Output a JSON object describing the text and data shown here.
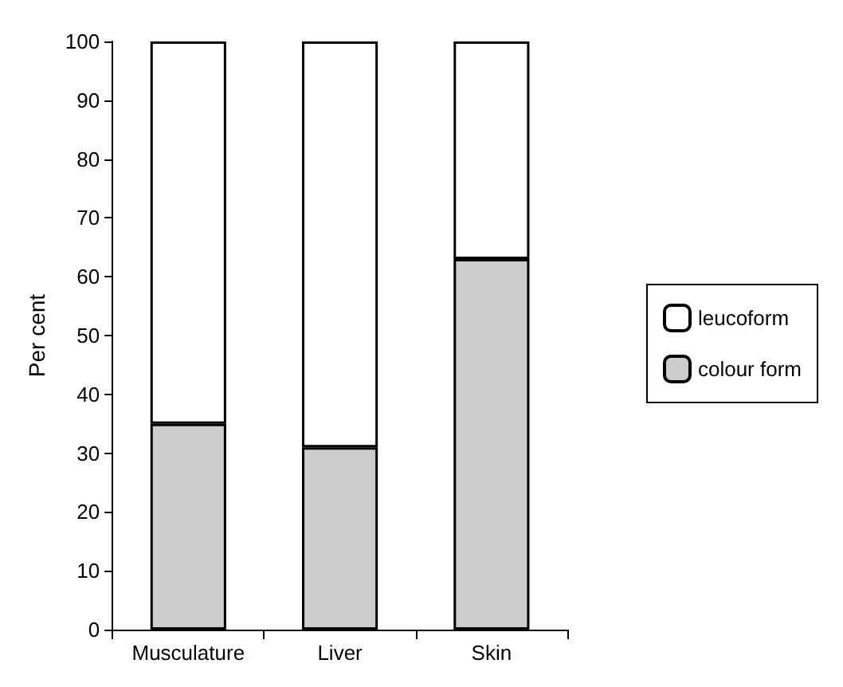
{
  "chart_data": {
    "type": "bar",
    "stacked": true,
    "ylabel": "Per cent",
    "categories": [
      "Musculature",
      "Liver",
      "Skin"
    ],
    "series": [
      {
        "name": "colour form",
        "color": "#cccccc",
        "values": [
          35,
          31,
          63
        ]
      },
      {
        "name": "leucoform",
        "color": "#ffffff",
        "values": [
          65,
          69,
          37
        ]
      }
    ],
    "ylim": [
      0,
      100
    ],
    "yticks": [
      0,
      10,
      20,
      30,
      40,
      50,
      60,
      70,
      80,
      90,
      100
    ],
    "grid": false,
    "legend": "right"
  }
}
